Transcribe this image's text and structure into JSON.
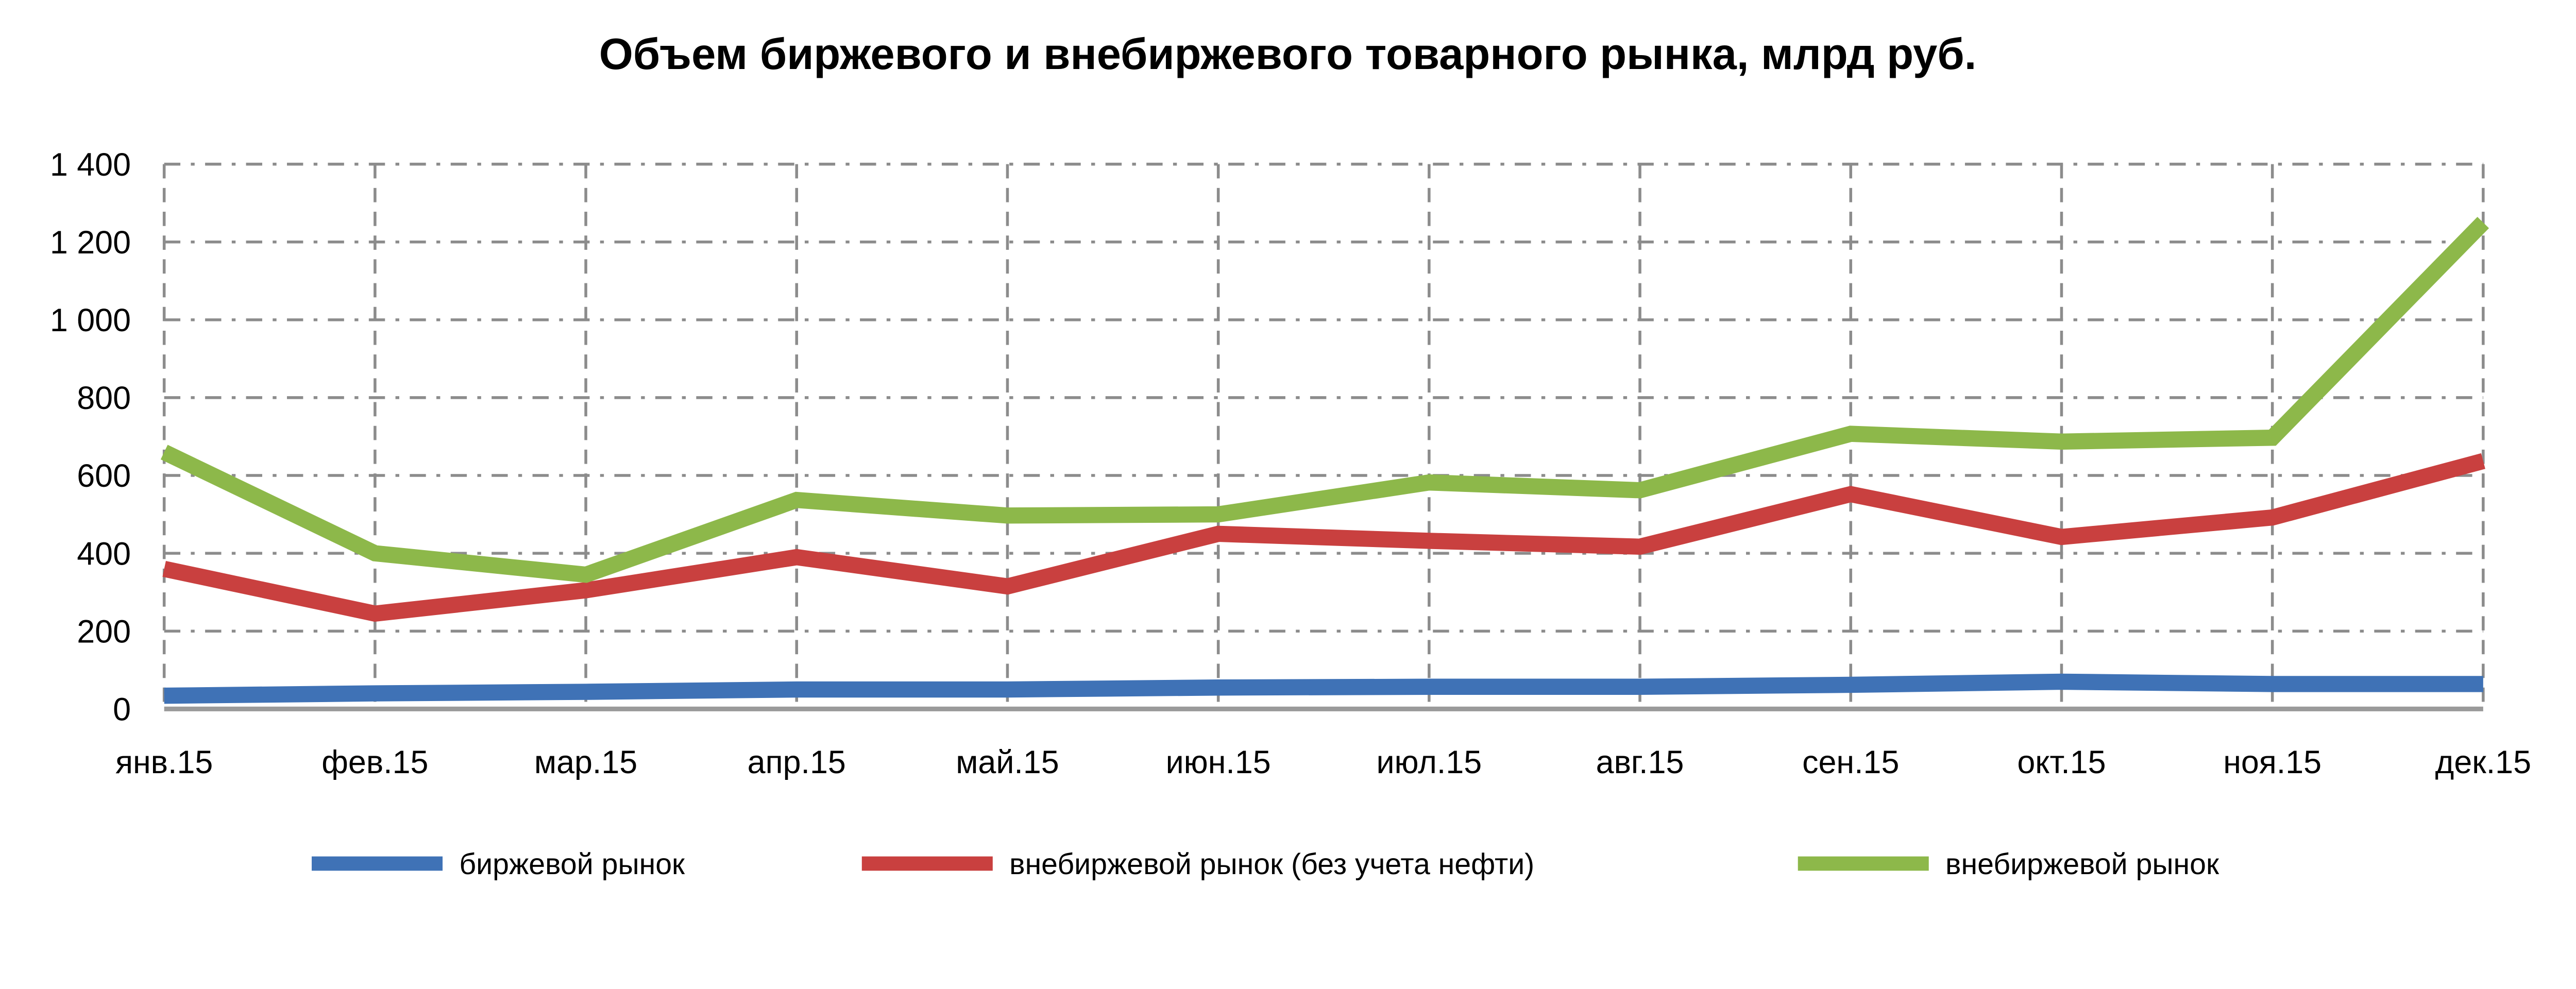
{
  "chart_data": {
    "type": "line",
    "title": "Объем биржевого и внебиржевого товарного рынка, млрд руб.",
    "xlabel": "",
    "ylabel": "",
    "ylim": [
      0,
      1400
    ],
    "yticks": [
      0,
      200,
      400,
      600,
      800,
      1000,
      1200,
      1400
    ],
    "ytick_labels": [
      "0",
      "200",
      "400",
      "600",
      "800",
      "1 000",
      "1 200",
      "1 400"
    ],
    "grid": true,
    "legend_position": "bottom",
    "categories": [
      "янв.15",
      "фев.15",
      "мар.15",
      "апр.15",
      "май.15",
      "июн.15",
      "июл.15",
      "авг.15",
      "сен.15",
      "окт.15",
      "ноя.15",
      "дек.15"
    ],
    "series": [
      {
        "name": "биржевой рынок",
        "color": "#3f72b6",
        "values": [
          34,
          40,
          44,
          50,
          50,
          55,
          57,
          57,
          62,
          70,
          64,
          64
        ]
      },
      {
        "name": "внебиржевой рынок (без учета нефти)",
        "color": "#c9403f",
        "values": [
          360,
          245,
          305,
          390,
          315,
          450,
          432,
          417,
          552,
          442,
          492,
          637
        ]
      },
      {
        "name": "внебиржевой рынок",
        "color": "#8db84a",
        "values": [
          660,
          400,
          345,
          537,
          497,
          500,
          582,
          562,
          707,
          687,
          697,
          1250
        ]
      }
    ]
  }
}
